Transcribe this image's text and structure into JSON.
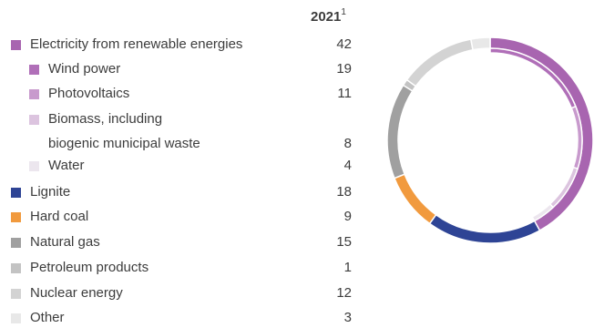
{
  "chart_data": {
    "type": "pie",
    "header": {
      "year": "2021",
      "footnote_mark": "1"
    },
    "rows": [
      {
        "label": "Electricity from renewable energies",
        "value": 42,
        "color": "#a865b0",
        "level": 0
      },
      {
        "label": "Wind power",
        "value": 19,
        "color": "#b06fb8",
        "level": 1
      },
      {
        "label": "Photovoltaics",
        "value": 11,
        "color": "#c89acd",
        "level": 1
      },
      {
        "label": "Biomass, including",
        "label2": "biogenic municipal waste",
        "value": 8,
        "color": "#dcc4df",
        "level": 1
      },
      {
        "label": "Water",
        "value": 4,
        "color": "#ece6ee",
        "level": 1
      },
      {
        "label": "Lignite",
        "value": 18,
        "color": "#2e4495",
        "level": 0
      },
      {
        "label": "Hard coal",
        "value": 9,
        "color": "#f19a3e",
        "level": 0
      },
      {
        "label": "Natural gas",
        "value": 15,
        "color": "#a0a0a0",
        "level": 0
      },
      {
        "label": "Petroleum products",
        "value": 1,
        "color": "#c3c3c3",
        "level": 0
      },
      {
        "label": "Nuclear energy",
        "value": 12,
        "color": "#d3d3d3",
        "level": 0
      },
      {
        "label": "Other",
        "value": 3,
        "color": "#e8e8e8",
        "level": 0
      }
    ],
    "outer_ring": [
      "Electricity from renewable energies",
      "Lignite",
      "Hard coal",
      "Natural gas",
      "Petroleum products",
      "Nuclear energy",
      "Other"
    ],
    "inner_ring": [
      "Wind power",
      "Photovoltaics",
      "Biomass, including",
      "Water"
    ]
  }
}
